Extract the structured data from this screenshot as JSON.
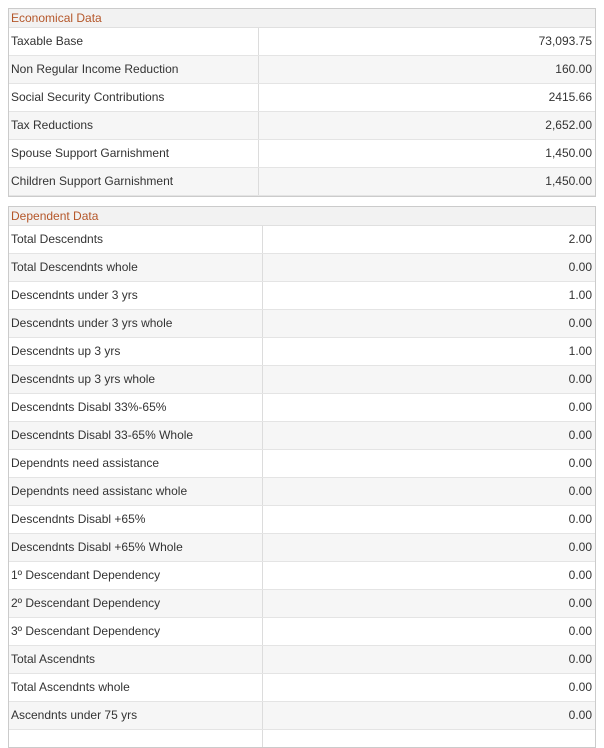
{
  "sections": [
    {
      "title": "Economical Data",
      "rows": [
        [
          "Taxable Base",
          "73,093.75"
        ],
        [
          "Non Regular Income Reduction",
          "160.00"
        ],
        [
          "Social Security Contributions",
          "2415.66"
        ],
        [
          "Tax Reductions",
          "2,652.00"
        ],
        [
          "Spouse Support Garnishment",
          "1,450.00"
        ],
        [
          "Children Support Garnishment",
          "1,450.00"
        ]
      ]
    },
    {
      "title": "Dependent Data",
      "rows": [
        [
          "Total Descendnts",
          "2.00"
        ],
        [
          "Total Descendnts whole",
          "0.00"
        ],
        [
          "Descendnts under 3 yrs",
          "1.00"
        ],
        [
          "Descendnts under 3 yrs whole",
          "0.00"
        ],
        [
          "Descendnts up 3 yrs",
          "1.00"
        ],
        [
          "Descendnts up 3 yrs whole",
          "0.00"
        ],
        [
          "Descendnts Disabl 33%-65%",
          "0.00"
        ],
        [
          "Descendnts Disabl 33-65% Whole",
          "0.00"
        ],
        [
          "Dependnts need assistance",
          "0.00"
        ],
        [
          "Dependnts need assistanc whole",
          "0.00"
        ],
        [
          "Descendnts Disabl +65%",
          "0.00"
        ],
        [
          "Descendnts Disabl +65% Whole",
          "0.00"
        ],
        [
          "1º Descendant Dependency",
          "0.00"
        ],
        [
          "2º Descendant Dependency",
          "0.00"
        ],
        [
          "3º Descendant Dependency",
          "0.00"
        ],
        [
          "Total Ascendnts",
          "0.00"
        ],
        [
          "Total Ascendnts whole",
          "0.00"
        ],
        [
          "Ascendnts under 75 yrs",
          "0.00"
        ]
      ]
    }
  ]
}
